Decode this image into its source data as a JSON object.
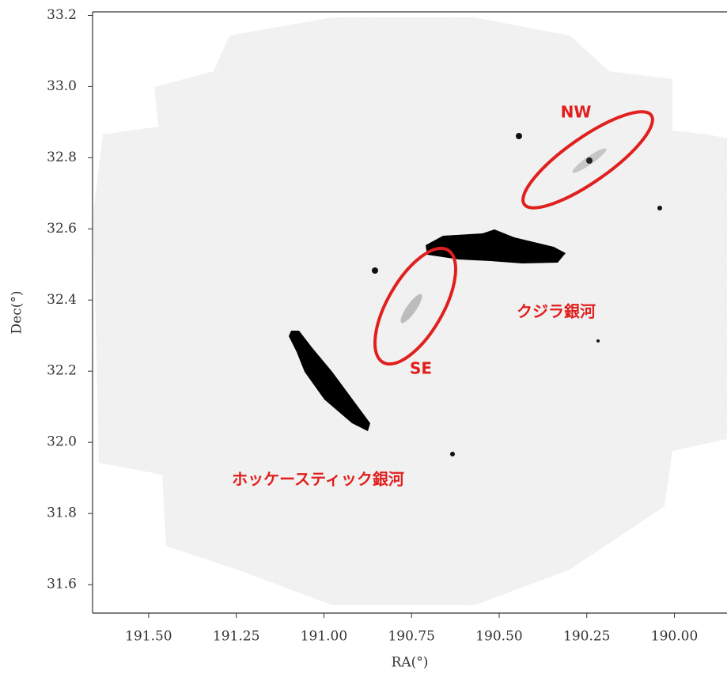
{
  "chart_data": {
    "type": "image",
    "xlabel": "RA(°)",
    "ylabel": "Dec(°)",
    "xlim": [
      191.66,
      189.85
    ],
    "ylim": [
      31.52,
      33.21
    ],
    "xticks": [
      {
        "value": 191.5,
        "label": "191.50"
      },
      {
        "value": 191.25,
        "label": "191.25"
      },
      {
        "value": 191,
        "label": "191.00"
      },
      {
        "value": 190.75,
        "label": "190.75"
      },
      {
        "value": 190.5,
        "label": "190.50"
      },
      {
        "value": 190.25,
        "label": "190.25"
      },
      {
        "value": 190,
        "label": "190.00"
      }
    ],
    "yticks": [
      31.6,
      31.8,
      {
        "value": 32,
        "label": "32.0"
      },
      32.2,
      32.4,
      32.6,
      32.8,
      {
        "value": 33,
        "label": "33.0"
      },
      33.2
    ],
    "annotations": [
      "NW",
      "SE",
      "クジラ銀河",
      "ホッケースティック銀河"
    ]
  }
}
